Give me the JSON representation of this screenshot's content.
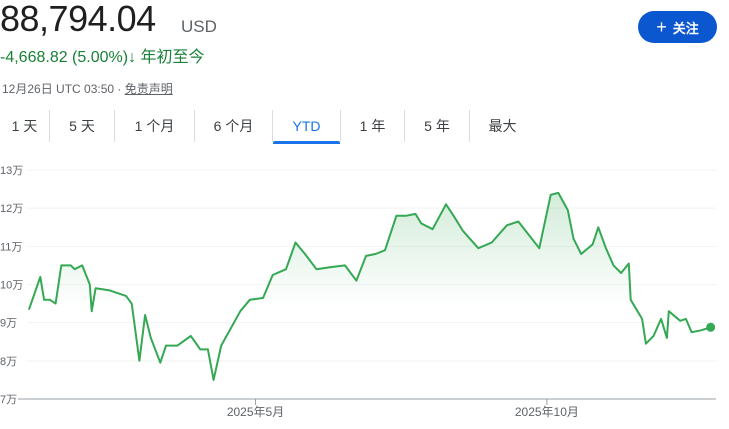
{
  "header": {
    "price": "88,794.04",
    "currency": "USD",
    "change": "-4,668.82 (5.00%)",
    "change_icon": "arrow-down-icon",
    "period": "年初至今",
    "timestamp": "12月26日 UTC 03:50 · ",
    "disclaimer": "免责声明",
    "follow_label": "关注",
    "follow_icon": "plus-icon"
  },
  "tabs": [
    {
      "label": "1 天"
    },
    {
      "label": "5 天"
    },
    {
      "label": "1 个月"
    },
    {
      "label": "6 个月"
    },
    {
      "label": "YTD",
      "active": true
    },
    {
      "label": "1 年"
    },
    {
      "label": "5 年"
    },
    {
      "label": "最大"
    }
  ],
  "colors": {
    "line": "#34a853",
    "accent": "#1a73e8",
    "button": "#0b57d0",
    "positive": "#188038"
  },
  "chart_data": {
    "type": "line",
    "ylim": [
      70000,
      130000
    ],
    "yticks": [
      {
        "value": 130000,
        "label": "13万"
      },
      {
        "value": 120000,
        "label": "12万"
      },
      {
        "value": 110000,
        "label": "11万"
      },
      {
        "value": 100000,
        "label": "10万"
      },
      {
        "value": 90000,
        "label": "9万"
      },
      {
        "value": 80000,
        "label": "8万"
      },
      {
        "value": 70000,
        "label": "7万"
      }
    ],
    "xlim": [
      "2025-01-01",
      "2025-12-27"
    ],
    "xticks": [
      {
        "date": "2025-05-01",
        "label": "2025年5月"
      },
      {
        "date": "2025-10-01",
        "label": "2025年10月"
      }
    ],
    "grid": true,
    "points": [
      [
        "2025-01-02",
        93400
      ],
      [
        "2025-01-08",
        102000
      ],
      [
        "2025-01-10",
        96000
      ],
      [
        "2025-01-13",
        96000
      ],
      [
        "2025-01-16",
        95000
      ],
      [
        "2025-01-19",
        105000
      ],
      [
        "2025-01-24",
        105000
      ],
      [
        "2025-01-26",
        104000
      ],
      [
        "2025-01-30",
        105000
      ],
      [
        "2025-02-03",
        100000
      ],
      [
        "2025-02-04",
        93000
      ],
      [
        "2025-02-06",
        99000
      ],
      [
        "2025-02-13",
        98500
      ],
      [
        "2025-02-22",
        97000
      ],
      [
        "2025-02-25",
        95000
      ],
      [
        "2025-03-01",
        80000
      ],
      [
        "2025-03-04",
        92000
      ],
      [
        "2025-03-07",
        86000
      ],
      [
        "2025-03-12",
        79500
      ],
      [
        "2025-03-15",
        84000
      ],
      [
        "2025-03-21",
        84000
      ],
      [
        "2025-03-28",
        86500
      ],
      [
        "2025-04-02",
        83000
      ],
      [
        "2025-04-06",
        83000
      ],
      [
        "2025-04-09",
        75000
      ],
      [
        "2025-04-13",
        84000
      ],
      [
        "2025-04-23",
        93000
      ],
      [
        "2025-04-28",
        96000
      ],
      [
        "2025-05-05",
        96500
      ],
      [
        "2025-05-10",
        102500
      ],
      [
        "2025-05-17",
        104000
      ],
      [
        "2025-05-22",
        111000
      ],
      [
        "2025-05-27",
        108000
      ],
      [
        "2025-06-02",
        104000
      ],
      [
        "2025-06-09",
        104500
      ],
      [
        "2025-06-17",
        105000
      ],
      [
        "2025-06-23",
        101000
      ],
      [
        "2025-06-28",
        107500
      ],
      [
        "2025-07-03",
        108000
      ],
      [
        "2025-07-08",
        109000
      ],
      [
        "2025-07-14",
        118000
      ],
      [
        "2025-07-19",
        118000
      ],
      [
        "2025-07-24",
        118500
      ],
      [
        "2025-07-27",
        116000
      ],
      [
        "2025-08-02",
        114500
      ],
      [
        "2025-08-09",
        121000
      ],
      [
        "2025-08-13",
        118000
      ],
      [
        "2025-08-18",
        114000
      ],
      [
        "2025-08-26",
        109500
      ],
      [
        "2025-09-02",
        111000
      ],
      [
        "2025-09-10",
        115500
      ],
      [
        "2025-09-16",
        116500
      ],
      [
        "2025-09-27",
        109500
      ],
      [
        "2025-10-03",
        123500
      ],
      [
        "2025-10-07",
        124000
      ],
      [
        "2025-10-12",
        119500
      ],
      [
        "2025-10-15",
        112000
      ],
      [
        "2025-10-19",
        108000
      ],
      [
        "2025-10-25",
        110500
      ],
      [
        "2025-10-28",
        115000
      ],
      [
        "2025-11-01",
        109500
      ],
      [
        "2025-11-05",
        105000
      ],
      [
        "2025-11-09",
        103000
      ],
      [
        "2025-11-13",
        105500
      ],
      [
        "2025-11-14",
        96000
      ],
      [
        "2025-11-20",
        91000
      ],
      [
        "2025-11-22",
        84500
      ],
      [
        "2025-11-26",
        86500
      ],
      [
        "2025-11-30",
        91000
      ],
      [
        "2025-12-03",
        86000
      ],
      [
        "2025-12-04",
        93000
      ],
      [
        "2025-12-10",
        90500
      ],
      [
        "2025-12-13",
        91000
      ],
      [
        "2025-12-16",
        87500
      ],
      [
        "2025-12-21",
        88000
      ],
      [
        "2025-12-26",
        88794.04
      ]
    ]
  }
}
